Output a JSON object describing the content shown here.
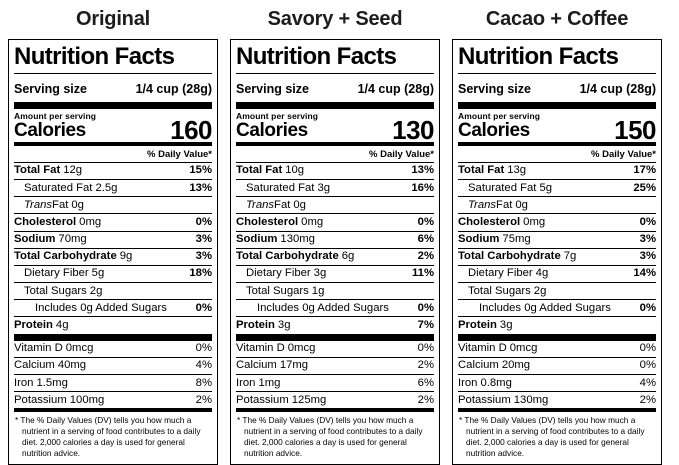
{
  "page": {
    "background": "#ffffff",
    "text_color": "#000000",
    "title_color": "#1c1c1c"
  },
  "labels": [
    {
      "title": "Original",
      "heading": "Nutrition Facts",
      "serving": {
        "label": "Serving size",
        "value": "1/4 cup (28g)"
      },
      "calories": {
        "eyebrow": "Amount per serving",
        "label": "Calories",
        "value": "160"
      },
      "daily_value_header": "% Daily Value*",
      "nutrients": [
        {
          "name": "Total Fat",
          "amount": "12g",
          "dv": "15%",
          "bold": true,
          "indent": 0
        },
        {
          "name": "Saturated Fat",
          "amount": "2.5g",
          "dv": "13%",
          "bold": false,
          "indent": 1
        },
        {
          "name_italic": "Trans",
          "name": "Fat",
          "amount": "0g",
          "dv": "",
          "bold": false,
          "indent": 1
        },
        {
          "name": "Cholesterol",
          "amount": "0mg",
          "dv": "0%",
          "bold": true,
          "indent": 0
        },
        {
          "name": "Sodium",
          "amount": "70mg",
          "dv": "3%",
          "bold": true,
          "indent": 0
        },
        {
          "name": "Total Carbohydrate",
          "amount": "9g",
          "dv": "3%",
          "bold": true,
          "indent": 0
        },
        {
          "name": "Dietary Fiber",
          "amount": "5g",
          "dv": "18%",
          "bold": false,
          "indent": 1
        },
        {
          "name": "Total Sugars",
          "amount": "2g",
          "dv": "",
          "bold": false,
          "indent": 1
        },
        {
          "name": "Includes 0g Added Sugars",
          "amount": "",
          "dv": "0%",
          "bold": false,
          "indent": 2
        },
        {
          "name": "Protein",
          "amount": "4g",
          "dv": "",
          "bold": true,
          "indent": 0
        }
      ],
      "micronutrients": [
        {
          "name": "Vitamin D",
          "amount": "0mcg",
          "dv": "0%"
        },
        {
          "name": "Calcium",
          "amount": "40mg",
          "dv": "4%"
        },
        {
          "name": "Iron",
          "amount": "1.5mg",
          "dv": "8%"
        },
        {
          "name": "Potassium",
          "amount": "100mg",
          "dv": "2%"
        }
      ],
      "footnote": "* The % Daily Values (DV) tells you how much a nutrient in a serving of food contributes to a daily diet. 2,000 calories a day is used for general nutrition advice."
    },
    {
      "title": "Savory + Seed",
      "heading": "Nutrition Facts",
      "serving": {
        "label": "Serving size",
        "value": "1/4 cup (28g)"
      },
      "calories": {
        "eyebrow": "Amount per serving",
        "label": "Calories",
        "value": "130"
      },
      "daily_value_header": "% Daily Value*",
      "nutrients": [
        {
          "name": "Total Fat",
          "amount": "10g",
          "dv": "13%",
          "bold": true,
          "indent": 0
        },
        {
          "name": "Saturated Fat",
          "amount": "3g",
          "dv": "16%",
          "bold": false,
          "indent": 1
        },
        {
          "name_italic": "Trans",
          "name": "Fat",
          "amount": "0g",
          "dv": "",
          "bold": false,
          "indent": 1
        },
        {
          "name": "Cholesterol",
          "amount": "0mg",
          "dv": "0%",
          "bold": true,
          "indent": 0
        },
        {
          "name": "Sodium",
          "amount": "130mg",
          "dv": "6%",
          "bold": true,
          "indent": 0
        },
        {
          "name": "Total Carbohydrate",
          "amount": "6g",
          "dv": "2%",
          "bold": true,
          "indent": 0
        },
        {
          "name": "Dietary Fiber",
          "amount": "3g",
          "dv": "11%",
          "bold": false,
          "indent": 1
        },
        {
          "name": "Total Sugars",
          "amount": "1g",
          "dv": "",
          "bold": false,
          "indent": 1
        },
        {
          "name": "Includes 0g Added Sugars",
          "amount": "",
          "dv": "0%",
          "bold": false,
          "indent": 2
        },
        {
          "name": "Protein",
          "amount": "3g",
          "dv": "7%",
          "bold": true,
          "indent": 0
        }
      ],
      "micronutrients": [
        {
          "name": "Vitamin D",
          "amount": "0mcg",
          "dv": "0%"
        },
        {
          "name": "Calcium",
          "amount": "17mg",
          "dv": "2%"
        },
        {
          "name": "Iron",
          "amount": "1mg",
          "dv": "6%"
        },
        {
          "name": "Potassium",
          "amount": "125mg",
          "dv": "2%"
        }
      ],
      "footnote": "* The % Daily Values (DV) tells you how much a nutrient in a serving of food contributes to a daily diet. 2,000 calories a day is used for general nutrition advice."
    },
    {
      "title": "Cacao + Coffee",
      "heading": "Nutrition Facts",
      "serving": {
        "label": "Serving size",
        "value": "1/4 cup (28g)"
      },
      "calories": {
        "eyebrow": "Amount per serving",
        "label": "Calories",
        "value": "150"
      },
      "daily_value_header": "% Daily Value*",
      "nutrients": [
        {
          "name": "Total Fat",
          "amount": "13g",
          "dv": "17%",
          "bold": true,
          "indent": 0
        },
        {
          "name": "Saturated Fat",
          "amount": "5g",
          "dv": "25%",
          "bold": false,
          "indent": 1
        },
        {
          "name_italic": "Trans",
          "name": "Fat",
          "amount": "0g",
          "dv": "",
          "bold": false,
          "indent": 1
        },
        {
          "name": "Cholesterol",
          "amount": "0mg",
          "dv": "0%",
          "bold": true,
          "indent": 0
        },
        {
          "name": "Sodium",
          "amount": "75mg",
          "dv": "3%",
          "bold": true,
          "indent": 0
        },
        {
          "name": "Total Carbohydrate",
          "amount": "7g",
          "dv": "3%",
          "bold": true,
          "indent": 0
        },
        {
          "name": "Dietary Fiber",
          "amount": "4g",
          "dv": "14%",
          "bold": false,
          "indent": 1
        },
        {
          "name": "Total Sugars",
          "amount": "2g",
          "dv": "",
          "bold": false,
          "indent": 1
        },
        {
          "name": "Includes 0g Added Sugars",
          "amount": "",
          "dv": "0%",
          "bold": false,
          "indent": 2
        },
        {
          "name": "Protein",
          "amount": "3g",
          "dv": "",
          "bold": true,
          "indent": 0
        }
      ],
      "micronutrients": [
        {
          "name": "Vitamin D",
          "amount": "0mcg",
          "dv": "0%"
        },
        {
          "name": "Calcium",
          "amount": "20mg",
          "dv": "0%"
        },
        {
          "name": "Iron",
          "amount": "0.8mg",
          "dv": "4%"
        },
        {
          "name": "Potassium",
          "amount": "130mg",
          "dv": "2%"
        }
      ],
      "footnote": "* The % Daily Values (DV) tells you how much a nutrient in a serving of food contributes to a daily diet. 2,000 calories a day is used for general nutrition advice."
    }
  ]
}
